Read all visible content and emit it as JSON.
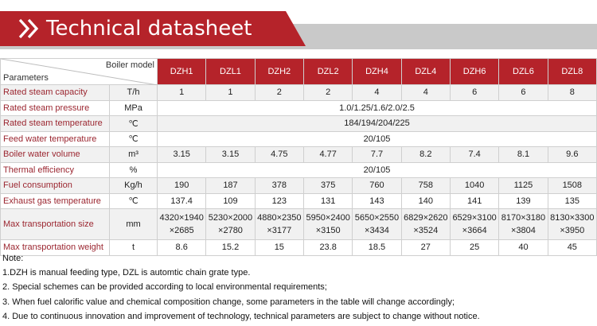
{
  "header": {
    "title": "Technical datasheet",
    "icon": "double-chevron-right-icon",
    "accent": "#b5232a",
    "band": "#c9c9c9"
  },
  "table": {
    "corner_top": "Boiler model",
    "corner_bottom": "Parameters",
    "models": [
      "DZH1",
      "DZL1",
      "DZH2",
      "DZL2",
      "DZH4",
      "DZL4",
      "DZH6",
      "DZL6",
      "DZL8"
    ],
    "rows": [
      {
        "label": "Rated steam capacity",
        "unit": "T/h",
        "values": [
          "1",
          "1",
          "2",
          "2",
          "4",
          "4",
          "6",
          "6",
          "8"
        ]
      },
      {
        "label": "Rated steam pressure",
        "unit": "MPa",
        "span": "1.0/1.25/1.6/2.0/2.5"
      },
      {
        "label": "Rated steam temperature",
        "unit": "℃",
        "span": "184/194/204/225"
      },
      {
        "label": "Feed water temperature",
        "unit": "℃",
        "span": "20/105"
      },
      {
        "label": "Boiler water volume",
        "unit": "m³",
        "values": [
          "3.15",
          "3.15",
          "4.75",
          "4.77",
          "7.7",
          "8.2",
          "7.4",
          "8.1",
          "9.6"
        ]
      },
      {
        "label": "Thermal efficiency",
        "unit": "%",
        "span": "20/105"
      },
      {
        "label": "Fuel consumption",
        "unit": "Kg/h",
        "values": [
          "190",
          "187",
          "378",
          "375",
          "760",
          "758",
          "1040",
          "1125",
          "1508"
        ]
      },
      {
        "label": "Exhaust gas temperature",
        "unit": "℃",
        "values": [
          "137.4",
          "109",
          "123",
          "131",
          "143",
          "140",
          "141",
          "139",
          "135"
        ]
      },
      {
        "label": "Max transportation size",
        "unit": "mm",
        "size": [
          [
            "4320×1940",
            "×2685"
          ],
          [
            "5230×2000",
            "×2780"
          ],
          [
            "4880×2350",
            "×3177"
          ],
          [
            "5950×2400",
            "×3150"
          ],
          [
            "5650×2550",
            "×3434"
          ],
          [
            "6829×2620",
            "×3524"
          ],
          [
            "6529×3100",
            "×3664"
          ],
          [
            "8170×3180",
            "×3804"
          ],
          [
            "8130×3300",
            "×3950"
          ]
        ]
      },
      {
        "label": "Max transportation weight",
        "unit": "t",
        "values": [
          "8.6",
          "15.2",
          "15",
          "23.8",
          "18.5",
          "27",
          "25",
          "40",
          "45"
        ]
      }
    ]
  },
  "notes": [
    "Note:",
    "1.DZH is manual feeding type, DZL is automtic chain grate type.",
    "2. Special schemes can be provided according to local environmental requirements;",
    "3. When fuel calorific value and chemical composition change, some parameters in the table will change accordingly;",
    "4. Due to continuous innovation and improvement of technology, technical parameters are subject to change without notice."
  ]
}
